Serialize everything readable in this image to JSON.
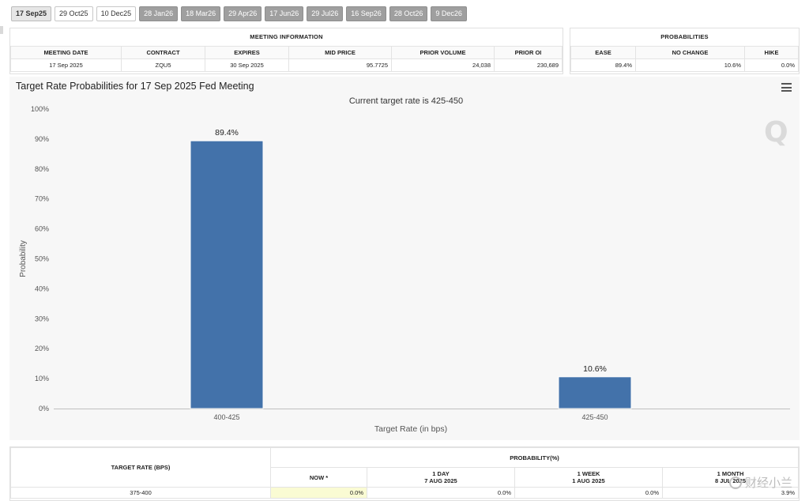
{
  "tabs": [
    {
      "label": "17 Sep25",
      "state": "selected"
    },
    {
      "label": "29 Oct25",
      "state": "normal"
    },
    {
      "label": "10 Dec25",
      "state": "normal"
    },
    {
      "label": "28 Jan26",
      "state": "disabled"
    },
    {
      "label": "18 Mar26",
      "state": "disabled"
    },
    {
      "label": "29 Apr26",
      "state": "disabled"
    },
    {
      "label": "17 Jun26",
      "state": "disabled"
    },
    {
      "label": "29 Jul26",
      "state": "disabled"
    },
    {
      "label": "16 Sep26",
      "state": "disabled"
    },
    {
      "label": "28 Oct26",
      "state": "disabled"
    },
    {
      "label": "9 Dec26",
      "state": "disabled"
    }
  ],
  "meeting_info": {
    "title": "MEETING INFORMATION",
    "headers": [
      "MEETING DATE",
      "CONTRACT",
      "EXPIRES",
      "MID PRICE",
      "PRIOR VOLUME",
      "PRIOR OI"
    ],
    "row": [
      "17 Sep 2025",
      "ZQU5",
      "30 Sep 2025",
      "95.7725",
      "24,038",
      "230,689"
    ]
  },
  "probabilities": {
    "title": "PROBABILITIES",
    "headers": [
      "EASE",
      "NO CHANGE",
      "HIKE"
    ],
    "row": [
      "89.4%",
      "10.6%",
      "0.0%"
    ]
  },
  "chart_data": {
    "type": "bar",
    "title": "Target Rate Probabilities for 17 Sep 2025 Fed Meeting",
    "subtitle": "Current target rate is 425-450",
    "categories": [
      "400-425",
      "425-450"
    ],
    "values": [
      89.4,
      10.6
    ],
    "data_labels": [
      "89.4%",
      "10.6%"
    ],
    "xlabel": "Target Rate (in bps)",
    "ylabel": "Probability",
    "ylim": [
      0,
      100
    ],
    "yticks": [
      "0%",
      "10%",
      "20%",
      "30%",
      "40%",
      "50%",
      "60%",
      "70%",
      "80%",
      "90%",
      "100%"
    ],
    "bar_color": "#4372aa",
    "grid": false
  },
  "bottom_table": {
    "target_rate_header": "TARGET RATE (BPS)",
    "probability_header": "PROBABILITY(%)",
    "columns": [
      {
        "top": "",
        "label": "NOW *"
      },
      {
        "top": "1 DAY",
        "label": "7 AUG 2025"
      },
      {
        "top": "1 WEEK",
        "label": "1 AUG 2025"
      },
      {
        "top": "1 MONTH",
        "label": "8 JUL 2025"
      }
    ],
    "rows": [
      {
        "rate": "375-400",
        "values": [
          "0.0%",
          "0.0%",
          "0.0%",
          "3.9%"
        ]
      }
    ]
  },
  "watermark": {
    "text": "财经小兰"
  }
}
